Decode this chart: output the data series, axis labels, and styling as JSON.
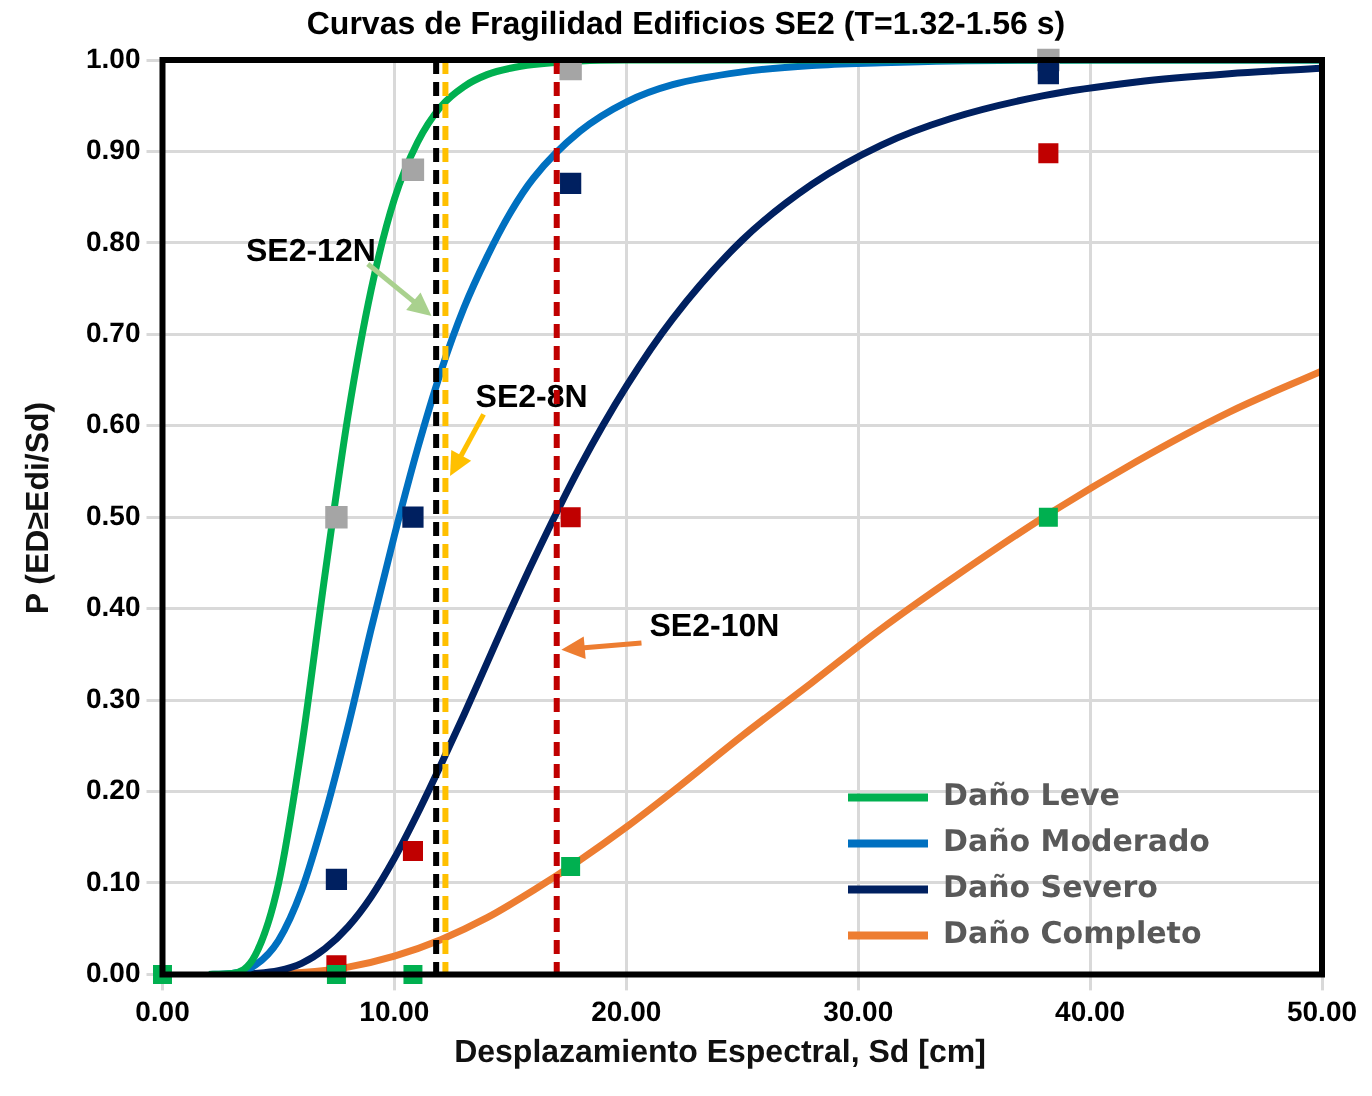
{
  "chart_data": {
    "type": "line",
    "title": "Curvas de Fragilidad Edificios SE2 (T=1.32-1.56 s)",
    "xlabel": "Desplazamiento Espectral, Sd [cm]",
    "ylabel": "P (ED≥Edi/Sd)",
    "xlim": [
      0,
      50
    ],
    "xticks": [
      {
        "value": 0,
        "label": "0.00"
      },
      {
        "value": 10,
        "label": "10.00"
      },
      {
        "value": 20,
        "label": "20.00"
      },
      {
        "value": 30,
        "label": "30.00"
      },
      {
        "value": 40,
        "label": "40.00"
      },
      {
        "value": 50,
        "label": "50.00"
      }
    ],
    "ylim": [
      0,
      1
    ],
    "yticks": [
      {
        "value": 0,
        "label": "0.00"
      },
      {
        "value": 0.1,
        "label": "0.10"
      },
      {
        "value": 0.2,
        "label": "0.20"
      },
      {
        "value": 0.3,
        "label": "0.30"
      },
      {
        "value": 0.4,
        "label": "0.40"
      },
      {
        "value": 0.5,
        "label": "0.50"
      },
      {
        "value": 0.6,
        "label": "0.60"
      },
      {
        "value": 0.7,
        "label": "0.70"
      },
      {
        "value": 0.8,
        "label": "0.80"
      },
      {
        "value": 0.9,
        "label": "0.90"
      },
      {
        "value": 1,
        "label": "1.00"
      }
    ],
    "grid": true,
    "legend": "bottom right",
    "line_style": "solid",
    "series": [
      {
        "name": "Daño Leve",
        "marker": "none",
        "color": "#00b050",
        "x": [
          2,
          3,
          4,
          5,
          6,
          7,
          8,
          9,
          10,
          11,
          12,
          13,
          14,
          15,
          16,
          18,
          20,
          30,
          40,
          50
        ],
        "values": [
          0,
          0.001,
          0.021,
          0.099,
          0.249,
          0.436,
          0.611,
          0.749,
          0.848,
          0.91,
          0.949,
          0.971,
          0.984,
          0.991,
          0.995,
          0.999,
          1,
          1,
          1,
          1
        ]
      },
      {
        "name": "Daño Moderado",
        "marker": "none",
        "color": "#0070c0",
        "x": [
          2,
          3,
          4,
          5,
          6,
          7,
          8,
          9,
          10,
          11,
          12,
          13,
          14,
          15,
          16,
          18,
          20,
          22,
          25,
          28,
          31,
          34,
          40,
          50
        ],
        "values": [
          0,
          0.001,
          0.01,
          0.037,
          0.092,
          0.174,
          0.271,
          0.378,
          0.48,
          0.575,
          0.659,
          0.729,
          0.785,
          0.833,
          0.871,
          0.922,
          0.954,
          0.973,
          0.987,
          0.994,
          0.997,
          0.999,
          1,
          1
        ]
      },
      {
        "name": "Daño Severo",
        "marker": "none",
        "color": "#002060",
        "x": [
          3,
          4,
          5,
          6,
          7,
          8,
          9,
          10,
          11,
          12,
          13,
          14,
          15,
          16,
          18,
          20,
          22,
          25,
          28,
          31,
          34,
          38,
          42,
          46,
          50
        ],
        "values": [
          0,
          0.001,
          0.004,
          0.012,
          0.028,
          0.052,
          0.085,
          0.127,
          0.176,
          0.229,
          0.284,
          0.341,
          0.398,
          0.453,
          0.555,
          0.643,
          0.717,
          0.803,
          0.864,
          0.907,
          0.936,
          0.961,
          0.976,
          0.985,
          0.991
        ]
      },
      {
        "name": "Daño Completo",
        "marker": "none",
        "color": "#ed7d31",
        "x": [
          3,
          4,
          6,
          8,
          10,
          12,
          14,
          16,
          18,
          20,
          22,
          25,
          28,
          31,
          34,
          38,
          42,
          46,
          50
        ],
        "values": [
          0,
          0,
          0.002,
          0.008,
          0.02,
          0.038,
          0.062,
          0.092,
          0.125,
          0.161,
          0.2,
          0.261,
          0.319,
          0.378,
          0.432,
          0.5,
          0.561,
          0.615,
          0.66
        ]
      },
      {
        "type": "scatter",
        "marker": "square",
        "color": "#a5a5a5",
        "x": [
          7.5,
          10.8,
          17.6,
          38.2
        ],
        "values": [
          0.5,
          0.88,
          0.99,
          1
        ]
      },
      {
        "type": "scatter",
        "marker": "square",
        "color": "#002060",
        "x": [
          7.5,
          10.8,
          17.6,
          38.2
        ],
        "values": [
          0.104,
          0.5,
          0.865,
          0.985
        ]
      },
      {
        "type": "scatter",
        "marker": "square",
        "color": "#c00000",
        "x": [
          7.5,
          10.8,
          17.6,
          38.2
        ],
        "values": [
          0.01,
          0.135,
          0.5,
          0.898
        ]
      },
      {
        "type": "scatter",
        "marker": "square",
        "color": "#00b050",
        "x": [
          0,
          7.5,
          10.8,
          17.6,
          38.2
        ],
        "values": [
          0,
          0,
          0,
          0.118,
          0.5
        ]
      }
    ],
    "ref_lines": [
      {
        "axis": "x",
        "value": 11.8,
        "label": "SE2-12N",
        "color": "#000000",
        "line_style": "dashed"
      },
      {
        "axis": "x",
        "value": 12.2,
        "label": "SE2-8N",
        "color": "#ffc000",
        "line_style": "dashed"
      },
      {
        "axis": "x",
        "value": 17,
        "label": "SE2-10N",
        "color": "#c00000",
        "line_style": "dashed"
      }
    ]
  }
}
